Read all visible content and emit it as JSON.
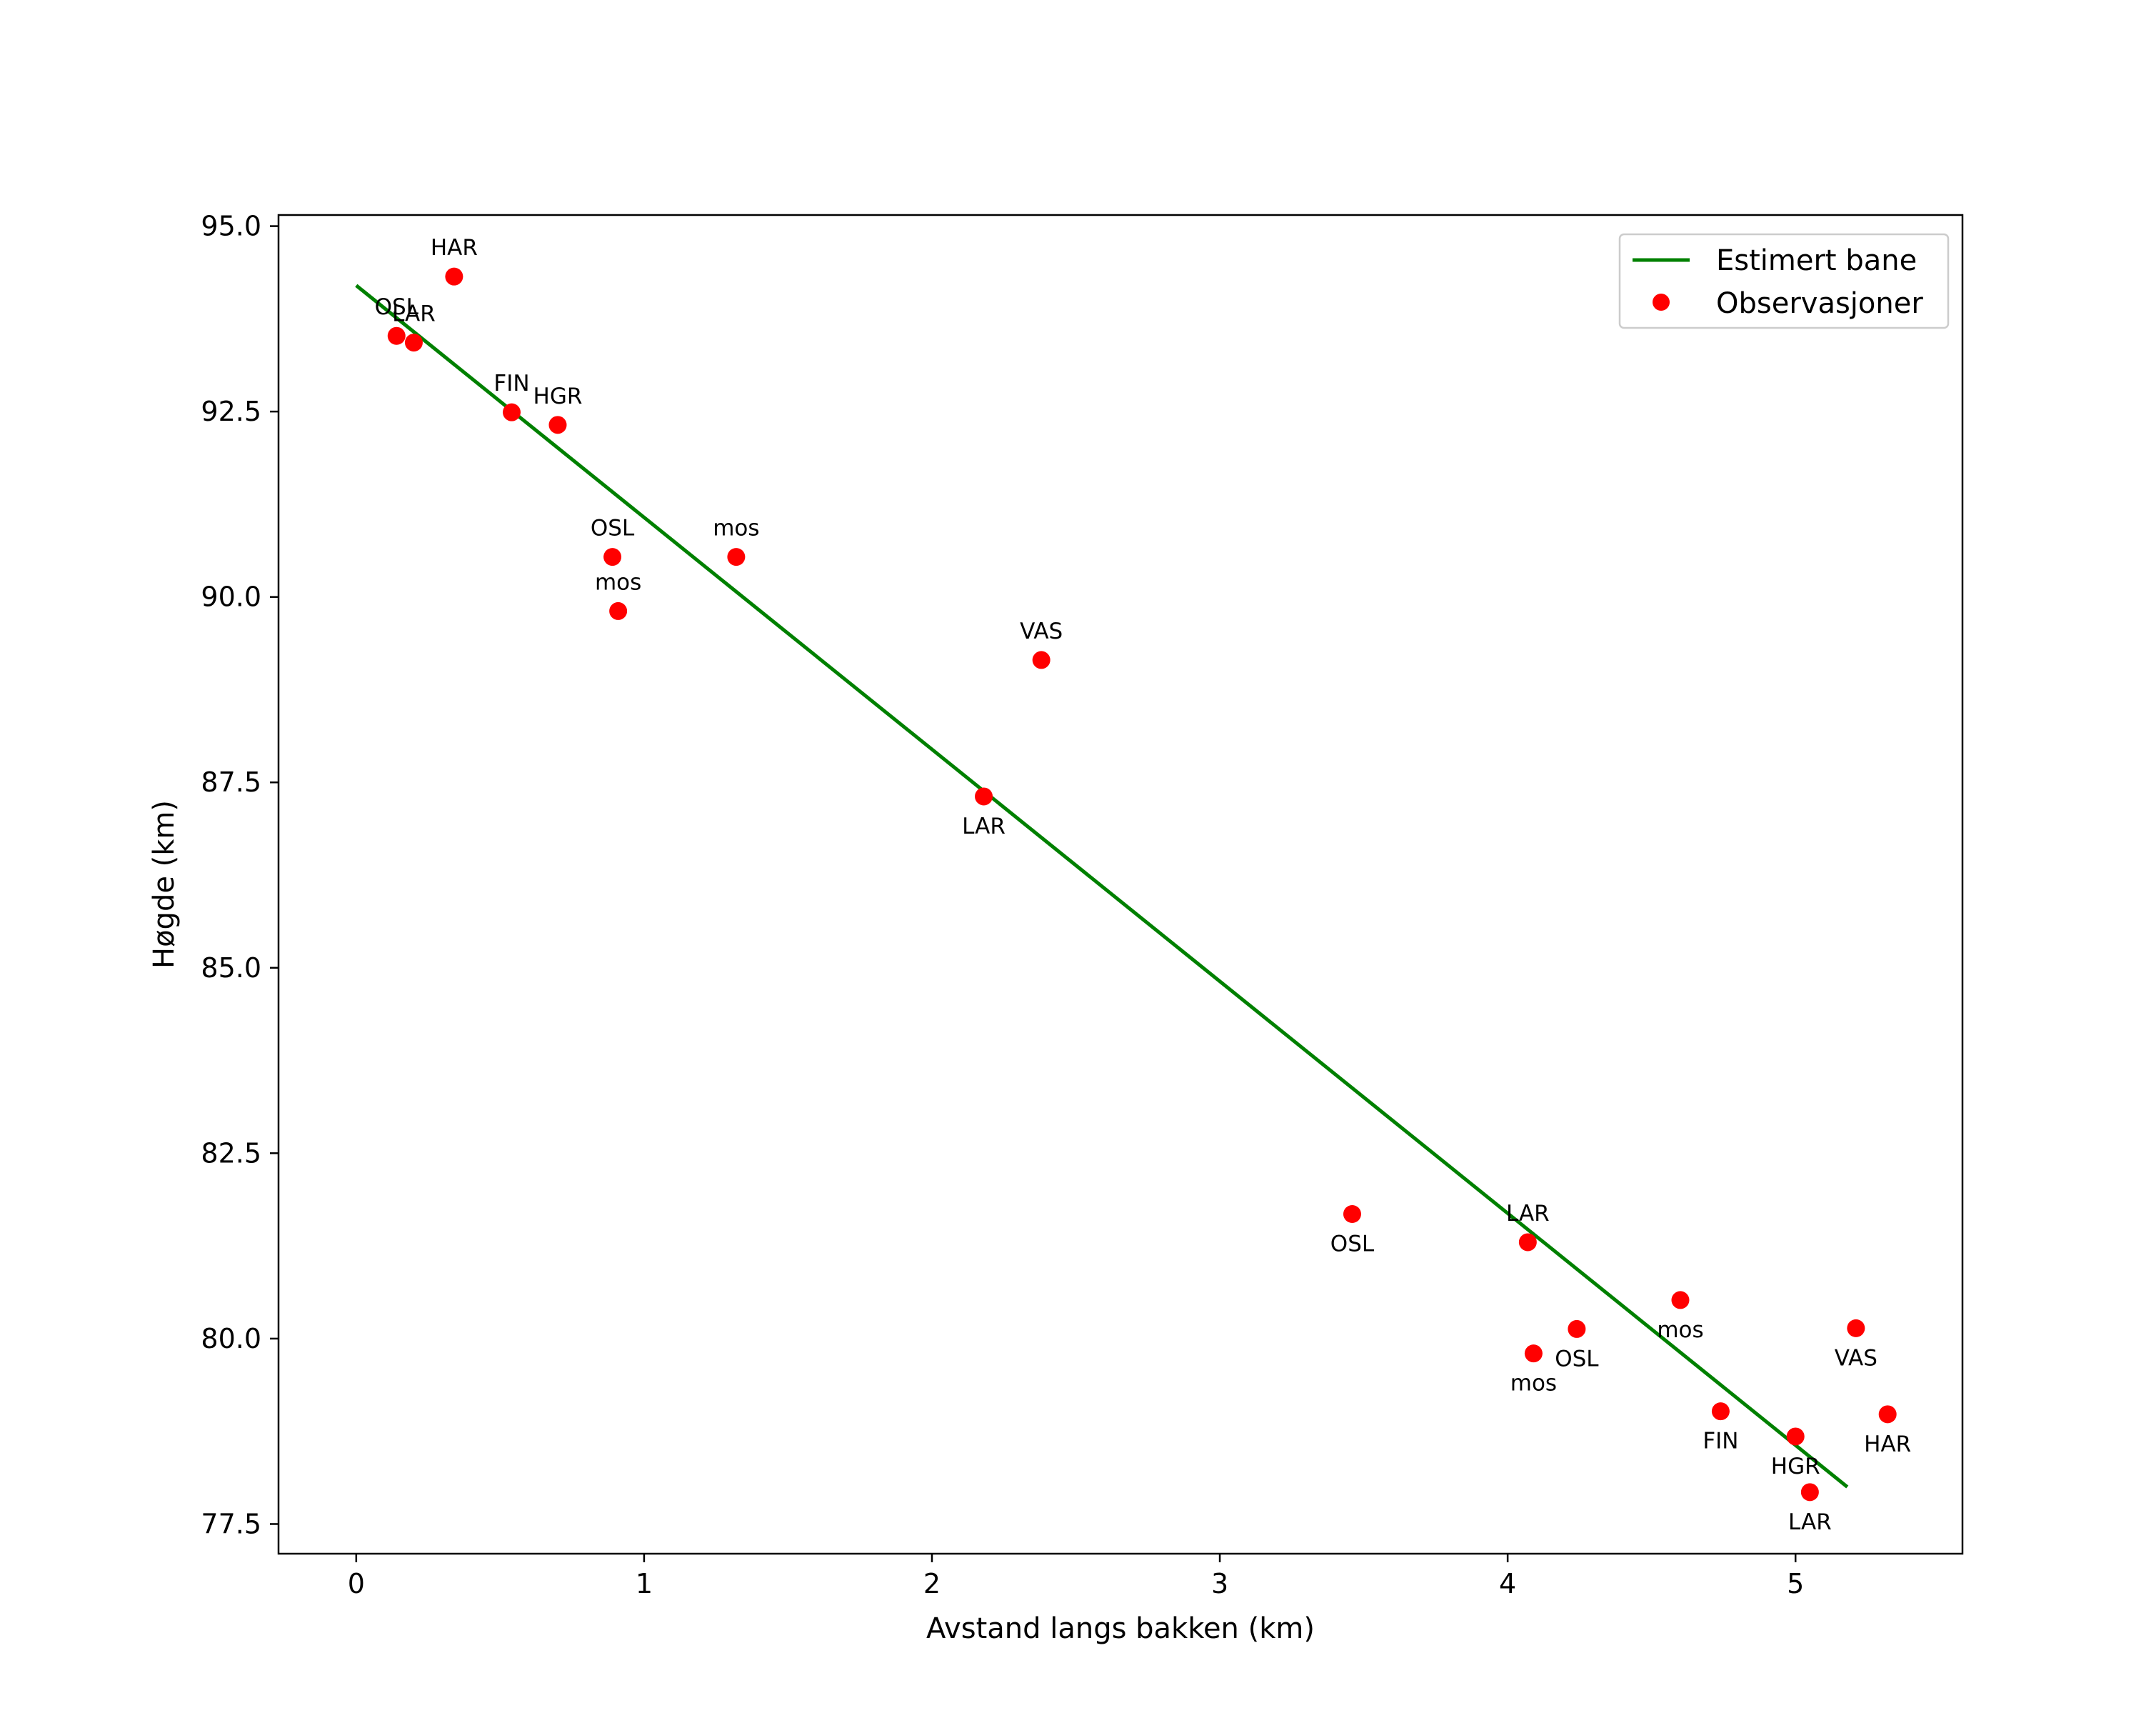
{
  "chart_data": {
    "type": "scatter",
    "title": "",
    "xlabel": "Avstand langs bakken (km)",
    "ylabel": "Høgde (km)",
    "xlim": [
      -0.27,
      5.58
    ],
    "ylim": [
      77.1,
      95.15
    ],
    "xticks": [
      0,
      1,
      2,
      3,
      4,
      5
    ],
    "yticks": [
      77.5,
      80.0,
      82.5,
      85.0,
      87.5,
      90.0,
      92.5,
      95.0
    ],
    "xtick_labels": [
      "0",
      "1",
      "2",
      "3",
      "4",
      "5"
    ],
    "ytick_labels": [
      "77.5",
      "80.0",
      "82.5",
      "85.0",
      "87.5",
      "90.0",
      "92.5",
      "95.0"
    ],
    "grid": false,
    "legend_position": "top-right",
    "series": [
      {
        "name": "Estimert bane",
        "kind": "line",
        "color": "#008000",
        "points": [
          {
            "x": 0.0,
            "y": 94.2
          },
          {
            "x": 5.18,
            "y": 78.0
          }
        ]
      },
      {
        "name": "Observasjoner",
        "kind": "scatter",
        "color": "#ff0000",
        "points": [
          {
            "x": 0.34,
            "y": 94.32,
            "label": "HAR",
            "pos": "above"
          },
          {
            "x": 0.14,
            "y": 93.52,
            "label": "OSL",
            "pos": "above"
          },
          {
            "x": 0.2,
            "y": 93.43,
            "label": "LAR",
            "pos": "above"
          },
          {
            "x": 0.54,
            "y": 92.49,
            "label": "FIN",
            "pos": "above"
          },
          {
            "x": 0.7,
            "y": 92.32,
            "label": "HGR",
            "pos": "above"
          },
          {
            "x": 0.89,
            "y": 90.54,
            "label": "OSL",
            "pos": "above"
          },
          {
            "x": 1.32,
            "y": 90.54,
            "label": "mos",
            "pos": "above"
          },
          {
            "x": 0.91,
            "y": 89.81,
            "label": "mos",
            "pos": "above"
          },
          {
            "x": 2.38,
            "y": 89.15,
            "label": "VAS",
            "pos": "above"
          },
          {
            "x": 2.18,
            "y": 87.31,
            "label": "LAR",
            "pos": "below"
          },
          {
            "x": 3.46,
            "y": 81.68,
            "label": "OSL",
            "pos": "below"
          },
          {
            "x": 4.07,
            "y": 81.3,
            "label": "LAR",
            "pos": "above"
          },
          {
            "x": 4.6,
            "y": 80.52,
            "label": "mos",
            "pos": "below"
          },
          {
            "x": 4.24,
            "y": 80.13,
            "label": "OSL",
            "pos": "below"
          },
          {
            "x": 4.09,
            "y": 79.8,
            "label": "mos",
            "pos": "below"
          },
          {
            "x": 5.21,
            "y": 80.14,
            "label": "VAS",
            "pos": "below"
          },
          {
            "x": 4.74,
            "y": 79.02,
            "label": "FIN",
            "pos": "below"
          },
          {
            "x": 5.32,
            "y": 78.98,
            "label": "HAR",
            "pos": "below"
          },
          {
            "x": 5.0,
            "y": 78.68,
            "label": "HGR",
            "pos": "below"
          },
          {
            "x": 5.05,
            "y": 77.93,
            "label": "LAR",
            "pos": "below"
          }
        ]
      }
    ]
  }
}
